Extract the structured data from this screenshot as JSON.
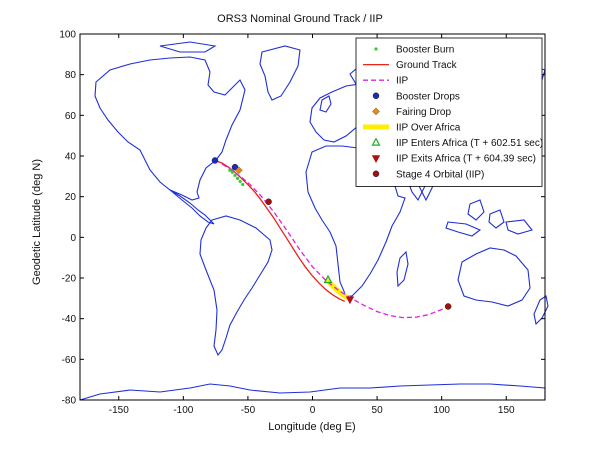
{
  "chart_data": {
    "type": "line",
    "title": "ORS3 Nominal Ground Track / IIP",
    "xlabel": "Longitude (deg E)",
    "ylabel": "Geodetic Latitude (deg N)",
    "xlim": [
      -180,
      180
    ],
    "ylim": [
      -80,
      100
    ],
    "xticks": [
      -150,
      -100,
      -50,
      0,
      50,
      100,
      150
    ],
    "yticks": [
      -80,
      -60,
      -40,
      -20,
      0,
      20,
      40,
      60,
      80,
      100
    ],
    "grid": false,
    "legend_position": "top-right",
    "background_map": "world coastlines",
    "colors": {
      "coastline": "#1f2fd6",
      "booster_burn": "#33cc33",
      "ground_track": "#e8231a",
      "iip": "#e020e0",
      "booster_drops": "#1a2ac0",
      "fairing_drop": "#e08a20",
      "iip_over_africa": "#ffee00",
      "iip_enters_africa": "#22aa22",
      "iip_exits_africa": "#b01010",
      "stage4_orbital": "#a01010"
    },
    "series": [
      {
        "name": "Booster Burn",
        "x": [
          -64,
          -62,
          -60,
          -58,
          -56,
          -54
        ],
        "y": [
          33,
          32,
          30.5,
          29,
          27.5,
          26
        ]
      },
      {
        "name": "Ground Track",
        "x": [
          -75.5,
          -70,
          -65,
          -60,
          -55,
          -50,
          -45,
          -40,
          -35,
          -30,
          -25,
          -20,
          -15,
          -10,
          -5,
          0,
          5,
          10,
          15,
          20,
          25
        ],
        "y": [
          37.8,
          36.5,
          34.5,
          32,
          29,
          26,
          22.5,
          18.5,
          14,
          9.5,
          4.5,
          -0.5,
          -5.5,
          -10.5,
          -15,
          -19,
          -22.5,
          -25.5,
          -28,
          -30,
          -31.5
        ]
      },
      {
        "name": "IIP",
        "x": [
          -70,
          -60,
          -50,
          -40,
          -30,
          -20,
          -10,
          0,
          10,
          20,
          30,
          40,
          50,
          60,
          70,
          80,
          90,
          100,
          105
        ],
        "y": [
          36,
          32,
          27,
          20.5,
          12.5,
          3.5,
          -6,
          -14.5,
          -21,
          -26,
          -30,
          -33.5,
          -36.5,
          -38.5,
          -39.5,
          -39.3,
          -38,
          -35.5,
          -34
        ]
      },
      {
        "name": "IIP Over Africa",
        "x": [
          12,
          15,
          18,
          21,
          24,
          27,
          29
        ],
        "y": [
          -21.5,
          -23.5,
          -25.3,
          -27,
          -28.5,
          -29.6,
          -30.3
        ]
      }
    ],
    "markers": [
      {
        "name": "Booster Drops",
        "x": -75.5,
        "y": 37.8
      },
      {
        "name": "Booster Drops",
        "x": -60,
        "y": 34.5
      },
      {
        "name": "Fairing Drop",
        "x": -57,
        "y": 33
      },
      {
        "name": "Stage 4 Orbital (IIP)",
        "x": -34,
        "y": 17.5
      },
      {
        "name": "IIP Enters Africa (T + 602.51 sec)",
        "x": 12,
        "y": -21
      },
      {
        "name": "IIP Exits Africa (T + 604.39 sec)",
        "x": 29,
        "y": -30.5
      },
      {
        "name": "Stage 4 Orbital (IIP)",
        "x": 105,
        "y": -34
      }
    ],
    "legend": [
      {
        "label": "Booster Burn",
        "key": "booster_burn",
        "style": "point"
      },
      {
        "label": "Ground Track",
        "key": "ground_track",
        "style": "line"
      },
      {
        "label": "IIP",
        "key": "iip",
        "style": "dashed"
      },
      {
        "label": "Booster Drops",
        "key": "booster_drops",
        "style": "dot"
      },
      {
        "label": "Fairing Drop",
        "key": "fairing_drop",
        "style": "diamond"
      },
      {
        "label": "IIP Over Africa",
        "key": "iip_over_africa",
        "style": "thick"
      },
      {
        "label": "IIP Enters Africa (T + 602.51 sec)",
        "key": "iip_enters_africa",
        "style": "triangle-up"
      },
      {
        "label": "IIP Exits Africa (T + 604.39 sec)",
        "key": "iip_exits_africa",
        "style": "triangle-down"
      },
      {
        "label": "Stage 4 Orbital (IIP)",
        "key": "stage4_orbital",
        "style": "dot"
      }
    ]
  }
}
